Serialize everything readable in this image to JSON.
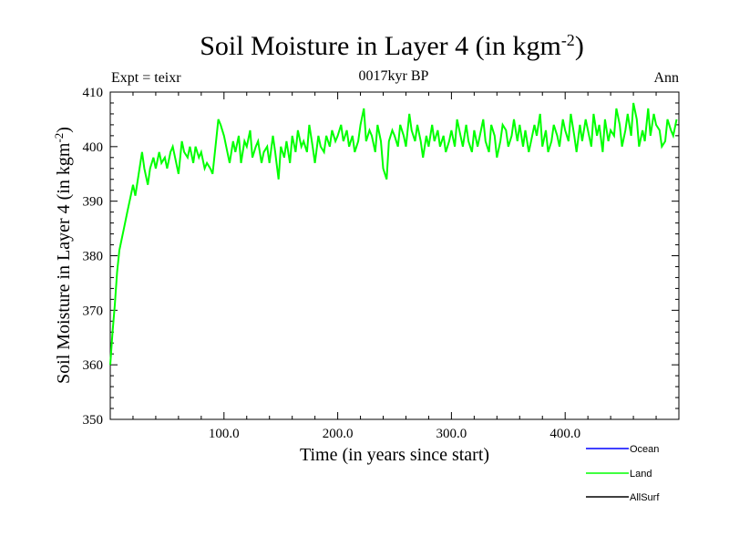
{
  "chart_data": {
    "type": "line",
    "title": "Soil Moisture in Layer 4 (in kgm",
    "title_superscript": "-2",
    "title_close": ")",
    "subtitle_left": "Expt = teixr",
    "subtitle_center": "0017kyr BP",
    "subtitle_right": "Ann",
    "xlabel": "Time (in years since start)",
    "ylabel": "Soil Moisture in Layer 4 (in kgm",
    "ylabel_superscript": "-2",
    "ylabel_close": ")",
    "xlim": [
      0,
      500
    ],
    "ylim": [
      350,
      410
    ],
    "x_ticks": [
      100,
      200,
      300,
      400
    ],
    "x_tick_labels": [
      "100.0",
      "200.0",
      "300.0",
      "400.0"
    ],
    "y_ticks": [
      350,
      360,
      370,
      380,
      390,
      400,
      410
    ],
    "y_tick_labels": [
      "350",
      "360",
      "370",
      "380",
      "390",
      "400",
      "410"
    ],
    "legend": [
      {
        "name": "Ocean",
        "color": "#0000ff"
      },
      {
        "name": "Land",
        "color": "#00ff00"
      },
      {
        "name": "AllSurf",
        "color": "#000000"
      }
    ],
    "series": [
      {
        "name": "Land",
        "color": "#00ff00",
        "x": [
          0,
          2,
          4,
          6,
          8,
          10,
          12,
          15,
          18,
          20,
          22,
          25,
          28,
          30,
          33,
          35,
          38,
          40,
          43,
          45,
          48,
          50,
          53,
          55,
          58,
          60,
          63,
          65,
          68,
          70,
          73,
          75,
          78,
          80,
          83,
          85,
          88,
          90,
          93,
          95,
          97,
          100,
          103,
          105,
          108,
          110,
          113,
          115,
          118,
          120,
          123,
          125,
          128,
          130,
          133,
          135,
          138,
          140,
          143,
          145,
          148,
          150,
          153,
          155,
          158,
          160,
          163,
          165,
          168,
          170,
          173,
          175,
          178,
          180,
          183,
          185,
          188,
          190,
          193,
          195,
          198,
          200,
          203,
          205,
          208,
          210,
          213,
          215,
          218,
          220,
          223,
          225,
          228,
          230,
          233,
          235,
          238,
          240,
          243,
          245,
          248,
          250,
          253,
          255,
          258,
          260,
          263,
          265,
          268,
          270,
          273,
          275,
          278,
          280,
          283,
          285,
          288,
          290,
          293,
          295,
          298,
          300,
          303,
          305,
          308,
          310,
          313,
          315,
          318,
          320,
          323,
          325,
          328,
          330,
          333,
          335,
          338,
          340,
          343,
          345,
          348,
          350,
          353,
          355,
          358,
          360,
          363,
          365,
          368,
          370,
          373,
          375,
          378,
          380,
          383,
          385,
          388,
          390,
          393,
          395,
          398,
          400,
          403,
          405,
          408,
          410,
          413,
          415,
          418,
          420,
          423,
          425,
          428,
          430,
          433,
          435,
          438,
          440,
          443,
          445,
          448,
          450,
          453,
          455,
          458,
          460,
          463,
          465,
          468,
          470,
          473,
          475,
          478,
          480,
          483,
          485,
          488,
          490,
          493,
          495,
          498
        ],
        "y": [
          360,
          366,
          371,
          377,
          381,
          383,
          385,
          388,
          391,
          393,
          391,
          395,
          399,
          396,
          393,
          396,
          398,
          396,
          399,
          397,
          398,
          396,
          399,
          400,
          397,
          395,
          401,
          399,
          398,
          400,
          397,
          400,
          398,
          399,
          396,
          397,
          396,
          395,
          401,
          405,
          404,
          402,
          399,
          397,
          401,
          399,
          402,
          397,
          401,
          400,
          403,
          398,
          400,
          401,
          397,
          399,
          400,
          397,
          402,
          399,
          394,
          400,
          398,
          401,
          397,
          402,
          399,
          403,
          400,
          401,
          399,
          404,
          400,
          397,
          402,
          400,
          399,
          402,
          400,
          403,
          401,
          402,
          404,
          401,
          403,
          400,
          402,
          399,
          401,
          404,
          407,
          401,
          403,
          402,
          399,
          404,
          401,
          396,
          394,
          401,
          403,
          402,
          400,
          404,
          402,
          400,
          406,
          403,
          401,
          404,
          401,
          398,
          402,
          400,
          404,
          401,
          403,
          400,
          402,
          399,
          401,
          403,
          400,
          405,
          402,
          400,
          404,
          401,
          399,
          403,
          400,
          402,
          405,
          401,
          399,
          404,
          402,
          398,
          401,
          404,
          403,
          400,
          402,
          405,
          401,
          404,
          400,
          403,
          399,
          401,
          404,
          402,
          406,
          400,
          403,
          399,
          401,
          404,
          402,
          400,
          405,
          403,
          401,
          406,
          402,
          399,
          404,
          401,
          405,
          403,
          400,
          406,
          402,
          404,
          399,
          405,
          401,
          403,
          402,
          407,
          404,
          400,
          403,
          406,
          402,
          408,
          405,
          400,
          403,
          401,
          407,
          402,
          406,
          404,
          403,
          400,
          401,
          405,
          403,
          402,
          405
        ]
      }
    ],
    "grid": false
  }
}
